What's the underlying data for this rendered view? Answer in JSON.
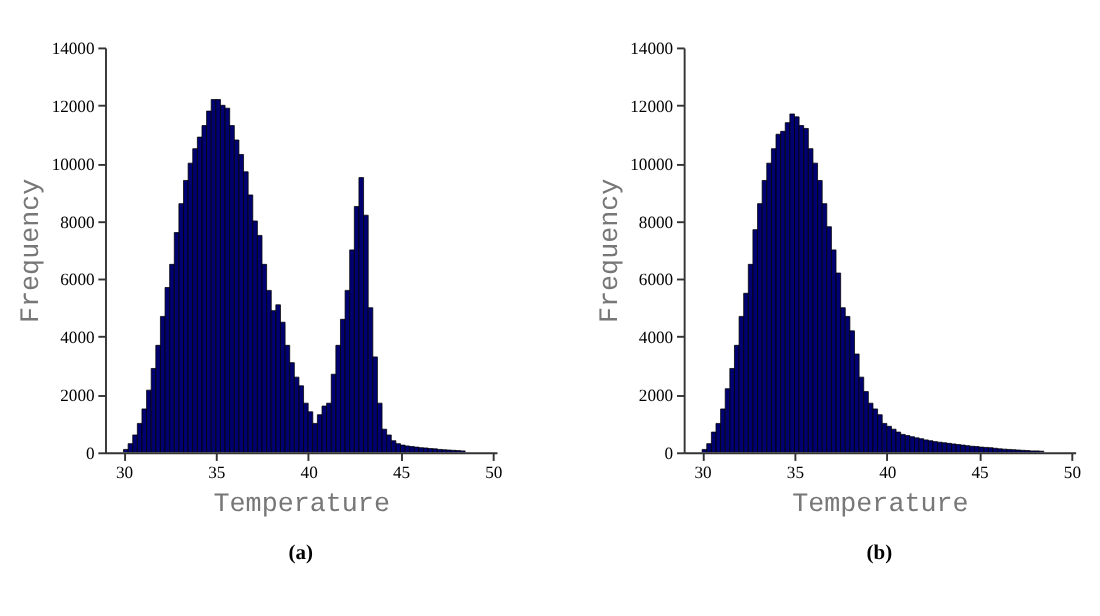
{
  "chart_data": [
    {
      "type": "histogram",
      "xlabel": "Temperature",
      "ylabel": "Frequency",
      "annotations": [
        "(a)"
      ],
      "color": "#000070",
      "bins": [
        30,
        30.25,
        30.5,
        30.75,
        31,
        31.25,
        31.5,
        31.75,
        32,
        32.25,
        32.5,
        32.75,
        33,
        33.25,
        33.5,
        33.75,
        34,
        34.25,
        34.5,
        34.75,
        35,
        35.25,
        35.5,
        35.75,
        36,
        36.25,
        36.5,
        36.75,
        37,
        37.25,
        37.5,
        37.75,
        38,
        38.25,
        38.5,
        38.75,
        39,
        39.25,
        39.5,
        39.75,
        40,
        40.25,
        40.5,
        40.75,
        41,
        41.25,
        41.5,
        41.75,
        42,
        42.25,
        42.5,
        42.75,
        43,
        43.25,
        43.5,
        43.75,
        44,
        44.25,
        44.5,
        44.75,
        45,
        45.25,
        45.5,
        45.75,
        46,
        46.25,
        46.5,
        46.75,
        47,
        47.25,
        47.5,
        47.75,
        48,
        48.25,
        48.5
      ],
      "values": [
        100,
        300,
        600,
        1000,
        1500,
        2150,
        2900,
        3700,
        4700,
        5700,
        6500,
        7600,
        8600,
        9400,
        10000,
        10500,
        10900,
        11300,
        11800,
        12200,
        12200,
        12000,
        11900,
        11300,
        10800,
        10300,
        9700,
        8900,
        8000,
        7500,
        6500,
        5600,
        4900,
        5100,
        4500,
        3700,
        3100,
        2600,
        2300,
        1700,
        1400,
        1000,
        1300,
        1600,
        1700,
        2700,
        3700,
        4600,
        5600,
        7000,
        8500,
        9500,
        8200,
        5000,
        3300,
        1700,
        800,
        600,
        400,
        300,
        250,
        220,
        200,
        180,
        160,
        150,
        130,
        120,
        100,
        90,
        80,
        70,
        60,
        50
      ],
      "xlim": [
        29,
        50.2
      ],
      "xticks": [
        30,
        35,
        40,
        45,
        50
      ],
      "ylim": [
        0,
        14000
      ],
      "yticks": [
        0,
        2000,
        4000,
        6000,
        8000,
        10000,
        12000,
        14000
      ],
      "grid": false
    },
    {
      "type": "histogram",
      "xlabel": "Temperature",
      "ylabel": "Frequency",
      "annotations": [
        "(b)"
      ],
      "color": "#000070",
      "bins": [
        30,
        30.25,
        30.5,
        30.75,
        31,
        31.25,
        31.5,
        31.75,
        32,
        32.25,
        32.5,
        32.75,
        33,
        33.25,
        33.5,
        33.75,
        34,
        34.25,
        34.5,
        34.75,
        35,
        35.25,
        35.5,
        35.75,
        36,
        36.25,
        36.5,
        36.75,
        37,
        37.25,
        37.5,
        37.75,
        38,
        38.25,
        38.5,
        38.75,
        39,
        39.25,
        39.5,
        39.75,
        40,
        40.25,
        40.5,
        40.75,
        41,
        41.25,
        41.5,
        41.75,
        42,
        42.25,
        42.5,
        42.75,
        43,
        43.25,
        43.5,
        43.75,
        44,
        44.25,
        44.5,
        44.75,
        45,
        45.25,
        45.5,
        45.75,
        46,
        46.25,
        46.5,
        46.75,
        47,
        47.25,
        47.5,
        47.75,
        48,
        48.25,
        48.5
      ],
      "values": [
        100,
        300,
        700,
        1000,
        1500,
        2200,
        2900,
        3700,
        4700,
        5500,
        6500,
        7700,
        8600,
        9400,
        10000,
        10500,
        11000,
        11100,
        11400,
        11700,
        11600,
        11300,
        11200,
        10500,
        10000,
        9400,
        8600,
        7800,
        7000,
        6200,
        5000,
        4700,
        4200,
        3400,
        2600,
        2100,
        1700,
        1500,
        1300,
        1000,
        900,
        800,
        700,
        620,
        580,
        540,
        500,
        470,
        430,
        400,
        370,
        350,
        330,
        310,
        290,
        270,
        250,
        230,
        210,
        200,
        180,
        170,
        160,
        140,
        120,
        110,
        100,
        90,
        80,
        70,
        60,
        50,
        50,
        40
      ],
      "xlim": [
        29,
        50.2
      ],
      "xticks": [
        30,
        35,
        40,
        45,
        50
      ],
      "ylim": [
        0,
        14000
      ],
      "yticks": [
        0,
        2000,
        4000,
        6000,
        8000,
        10000,
        12000,
        14000
      ],
      "grid": false
    }
  ]
}
